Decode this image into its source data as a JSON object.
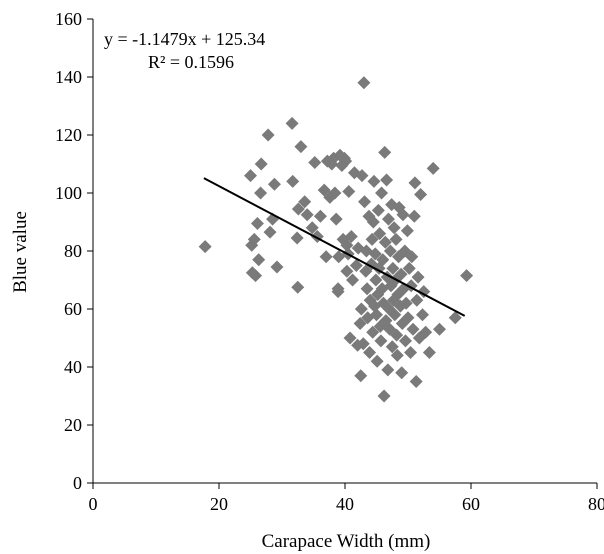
{
  "chart_data": {
    "type": "scatter",
    "title": "",
    "xlabel": "Carapace Width (mm)",
    "ylabel": "Blue value",
    "xlim": [
      0,
      80
    ],
    "ylim": [
      0,
      160
    ],
    "x_ticks": [
      "0",
      "20",
      "40",
      "60",
      "80"
    ],
    "y_ticks": [
      "0",
      "20",
      "40",
      "60",
      "80",
      "100",
      "120",
      "140",
      "160"
    ],
    "grid": false,
    "legend": "none",
    "marker": "diamond",
    "marker_color": "#7a7a7a",
    "points": [
      [
        17.8,
        81.5
      ],
      [
        25.0,
        106.0
      ],
      [
        25.2,
        82.0
      ],
      [
        25.3,
        72.5
      ],
      [
        25.6,
        84.0
      ],
      [
        25.8,
        71.5
      ],
      [
        26.1,
        89.5
      ],
      [
        26.3,
        77.0
      ],
      [
        26.6,
        100.0
      ],
      [
        26.7,
        110.0
      ],
      [
        27.8,
        120.0
      ],
      [
        28.1,
        86.5
      ],
      [
        28.5,
        91.0
      ],
      [
        28.8,
        103.0
      ],
      [
        29.2,
        74.5
      ],
      [
        31.6,
        124.0
      ],
      [
        31.7,
        104.0
      ],
      [
        32.4,
        84.5
      ],
      [
        32.5,
        67.5
      ],
      [
        32.6,
        94.5
      ],
      [
        33.0,
        116.0
      ],
      [
        33.6,
        97.0
      ],
      [
        34.0,
        92.5
      ],
      [
        34.8,
        88.0
      ],
      [
        35.2,
        110.5
      ],
      [
        35.6,
        85.0
      ],
      [
        36.1,
        92.0
      ],
      [
        36.7,
        101.0
      ],
      [
        37.0,
        78.0
      ],
      [
        37.2,
        111.0
      ],
      [
        37.6,
        98.5
      ],
      [
        37.9,
        110.0
      ],
      [
        38.2,
        112.0
      ],
      [
        38.4,
        100.0
      ],
      [
        38.6,
        91.0
      ],
      [
        38.9,
        67.0
      ],
      [
        38.9,
        66.0
      ],
      [
        39.0,
        78.0
      ],
      [
        39.2,
        113.0
      ],
      [
        39.5,
        109.5
      ],
      [
        39.7,
        84.0
      ],
      [
        39.9,
        112.0
      ],
      [
        40.1,
        111.0
      ],
      [
        40.3,
        73.0
      ],
      [
        40.3,
        82.0
      ],
      [
        40.5,
        79.0
      ],
      [
        40.6,
        100.5
      ],
      [
        40.8,
        50.0
      ],
      [
        41.0,
        85.0
      ],
      [
        41.2,
        70.0
      ],
      [
        41.5,
        107.0
      ],
      [
        41.8,
        75.0
      ],
      [
        42.0,
        47.5
      ],
      [
        42.1,
        81.0
      ],
      [
        42.4,
        55.0
      ],
      [
        42.5,
        37.0
      ],
      [
        42.6,
        60.0
      ],
      [
        42.7,
        106.0
      ],
      [
        42.9,
        48.0
      ],
      [
        43.0,
        138.0
      ],
      [
        43.1,
        97.0
      ],
      [
        43.3,
        73.0
      ],
      [
        43.4,
        80.0
      ],
      [
        43.5,
        67.0
      ],
      [
        43.6,
        57.0
      ],
      [
        43.8,
        92.0
      ],
      [
        43.9,
        45.0
      ],
      [
        44.0,
        63.0
      ],
      [
        44.2,
        75.5
      ],
      [
        44.3,
        84.0
      ],
      [
        44.4,
        52.0
      ],
      [
        44.5,
        90.0
      ],
      [
        44.6,
        104.0
      ],
      [
        44.7,
        61.0
      ],
      [
        44.8,
        79.0
      ],
      [
        44.9,
        70.0
      ],
      [
        45.0,
        58.0
      ],
      [
        45.1,
        42.0
      ],
      [
        45.2,
        65.0
      ],
      [
        45.3,
        94.0
      ],
      [
        45.4,
        74.0
      ],
      [
        45.5,
        86.0
      ],
      [
        45.6,
        54.0
      ],
      [
        45.7,
        49.0
      ],
      [
        45.8,
        100.0
      ],
      [
        45.9,
        67.0
      ],
      [
        46.0,
        77.0
      ],
      [
        46.1,
        62.0
      ],
      [
        46.2,
        30.0
      ],
      [
        46.3,
        114.0
      ],
      [
        46.4,
        83.0
      ],
      [
        46.5,
        56.0
      ],
      [
        46.6,
        104.5
      ],
      [
        46.7,
        71.0
      ],
      [
        46.8,
        39.0
      ],
      [
        46.9,
        91.0
      ],
      [
        47.0,
        60.0
      ],
      [
        47.1,
        53.0
      ],
      [
        47.2,
        80.0
      ],
      [
        47.3,
        68.0
      ],
      [
        47.4,
        96.0
      ],
      [
        47.5,
        47.0
      ],
      [
        47.6,
        74.0
      ],
      [
        47.7,
        63.0
      ],
      [
        47.8,
        88.0
      ],
      [
        47.9,
        58.0
      ],
      [
        48.0,
        70.0
      ],
      [
        48.1,
        84.0
      ],
      [
        48.2,
        51.0
      ],
      [
        48.3,
        44.0
      ],
      [
        48.4,
        65.0
      ],
      [
        48.5,
        78.0
      ],
      [
        48.6,
        95.0
      ],
      [
        48.8,
        61.0
      ],
      [
        48.9,
        72.0
      ],
      [
        49.0,
        38.0
      ],
      [
        49.1,
        55.0
      ],
      [
        49.2,
        92.5
      ],
      [
        49.3,
        67.0
      ],
      [
        49.5,
        80.0
      ],
      [
        49.6,
        49.0
      ],
      [
        49.7,
        62.0
      ],
      [
        49.9,
        87.0
      ],
      [
        50.0,
        57.0
      ],
      [
        50.2,
        74.0
      ],
      [
        50.4,
        45.0
      ],
      [
        50.5,
        68.0
      ],
      [
        50.6,
        78.0
      ],
      [
        50.8,
        53.0
      ],
      [
        51.0,
        92.0
      ],
      [
        51.1,
        103.5
      ],
      [
        51.3,
        35.0
      ],
      [
        51.4,
        63.0
      ],
      [
        51.6,
        71.0
      ],
      [
        51.8,
        50.0
      ],
      [
        52.0,
        99.5
      ],
      [
        52.3,
        58.0
      ],
      [
        52.5,
        66.0
      ],
      [
        52.8,
        52.0
      ],
      [
        53.4,
        45.0
      ],
      [
        54.0,
        108.5
      ],
      [
        55.0,
        53.0
      ],
      [
        57.5,
        57.0
      ],
      [
        59.3,
        71.5
      ]
    ],
    "trendline": {
      "x_start": 17.6,
      "x_end": 59.0,
      "slope": -1.1479,
      "intercept": 125.34,
      "color": "#000000"
    },
    "annotations": {
      "equation": "y = -1.1479x + 125.34",
      "r_squared": "R² = 0.1596"
    }
  }
}
